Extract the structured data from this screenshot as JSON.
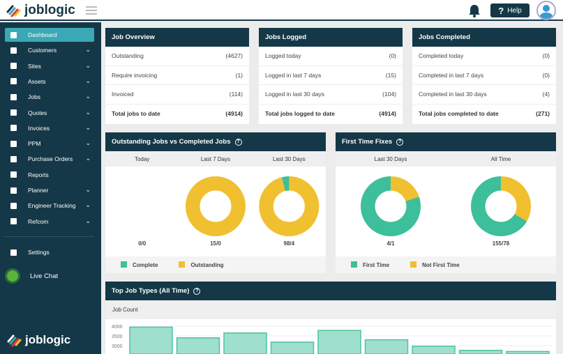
{
  "brand": "joblogic",
  "header": {
    "help_label": "Help",
    "help_icon": "?"
  },
  "colors": {
    "sidebar": "#143847",
    "active": "#3aa8b5",
    "complete": "#3dbf9c",
    "outstanding": "#f0c030",
    "bar_fill": "#9ee0cc",
    "bar_stroke": "#4cc3a3"
  },
  "sidebar": {
    "items": [
      {
        "label": "Dashboard",
        "icon": "dashboard-icon",
        "chevron": false,
        "active": true
      },
      {
        "label": "Customers",
        "icon": "user-icon",
        "chevron": true
      },
      {
        "label": "Sites",
        "icon": "building-icon",
        "chevron": true
      },
      {
        "label": "Assets",
        "icon": "asset-icon",
        "chevron": true
      },
      {
        "label": "Jobs",
        "icon": "wrench-icon",
        "chevron": true
      },
      {
        "label": "Quotes",
        "icon": "clipboard-icon",
        "chevron": true
      },
      {
        "label": "Invoices",
        "icon": "card-icon",
        "chevron": true
      },
      {
        "label": "PPM",
        "icon": "calendar-icon",
        "chevron": true
      },
      {
        "label": "Purchase Orders",
        "icon": "document-icon",
        "chevron": true
      },
      {
        "label": "Reports",
        "icon": "report-icon",
        "chevron": false
      },
      {
        "label": "Planner",
        "icon": "planner-icon",
        "chevron": true
      },
      {
        "label": "Engineer Tracking",
        "icon": "location-icon",
        "chevron": true
      },
      {
        "label": "Refcom",
        "icon": "cylinder-icon",
        "chevron": true
      }
    ],
    "settings_label": "Settings",
    "live_chat_label": "Live Chat"
  },
  "cards": [
    {
      "title": "Job Overview",
      "rows": [
        [
          "Outstanding",
          "(4627)"
        ],
        [
          "Require invoicing",
          "(1)"
        ],
        [
          "Invoiced",
          "(114)"
        ]
      ],
      "total": [
        "Total jobs to date",
        "(4914)"
      ]
    },
    {
      "title": "Jobs Logged",
      "rows": [
        [
          "Logged today",
          "(0)"
        ],
        [
          "Logged in last 7 days",
          "(15)"
        ],
        [
          "Logged in last 30 days",
          "(104)"
        ]
      ],
      "total": [
        "Total jobs logged to date",
        "(4914)"
      ]
    },
    {
      "title": "Jobs Completed",
      "rows": [
        [
          "Completed today",
          "(0)"
        ],
        [
          "Completed in last 7 days",
          "(0)"
        ],
        [
          "Completed in last 30 days",
          "(4)"
        ]
      ],
      "total": [
        "Total jobs completed to date",
        "(271)"
      ]
    }
  ],
  "ovc": {
    "title": "Outstanding Jobs vs Completed Jobs",
    "cols": [
      "Today",
      "Last 7 Days",
      "Last 30 Days"
    ],
    "labels": [
      "0/0",
      "15/0",
      "98/4"
    ],
    "data": [
      [
        0,
        0
      ],
      [
        0,
        15
      ],
      [
        4,
        98
      ]
    ],
    "legend": [
      "Complete",
      "Outstanding"
    ]
  },
  "ftf": {
    "title": "First Time Fixes",
    "cols": [
      "Last 30 Days",
      "All Time"
    ],
    "labels": [
      "4/1",
      "155/78"
    ],
    "data": [
      [
        4,
        1
      ],
      [
        155,
        78
      ]
    ],
    "legend": [
      "First Time",
      "Not First Time"
    ]
  },
  "top": {
    "title": "Top Job Types (All Time)",
    "subtitle": "Job Count"
  },
  "chart_data": {
    "type": "bar",
    "ylabel": "Job Count",
    "yticks": [
      "4000",
      "3500",
      "3000"
    ],
    "values": [
      3950,
      3400,
      3650,
      3180,
      3780,
      3300,
      2970,
      2760,
      2700
    ]
  }
}
